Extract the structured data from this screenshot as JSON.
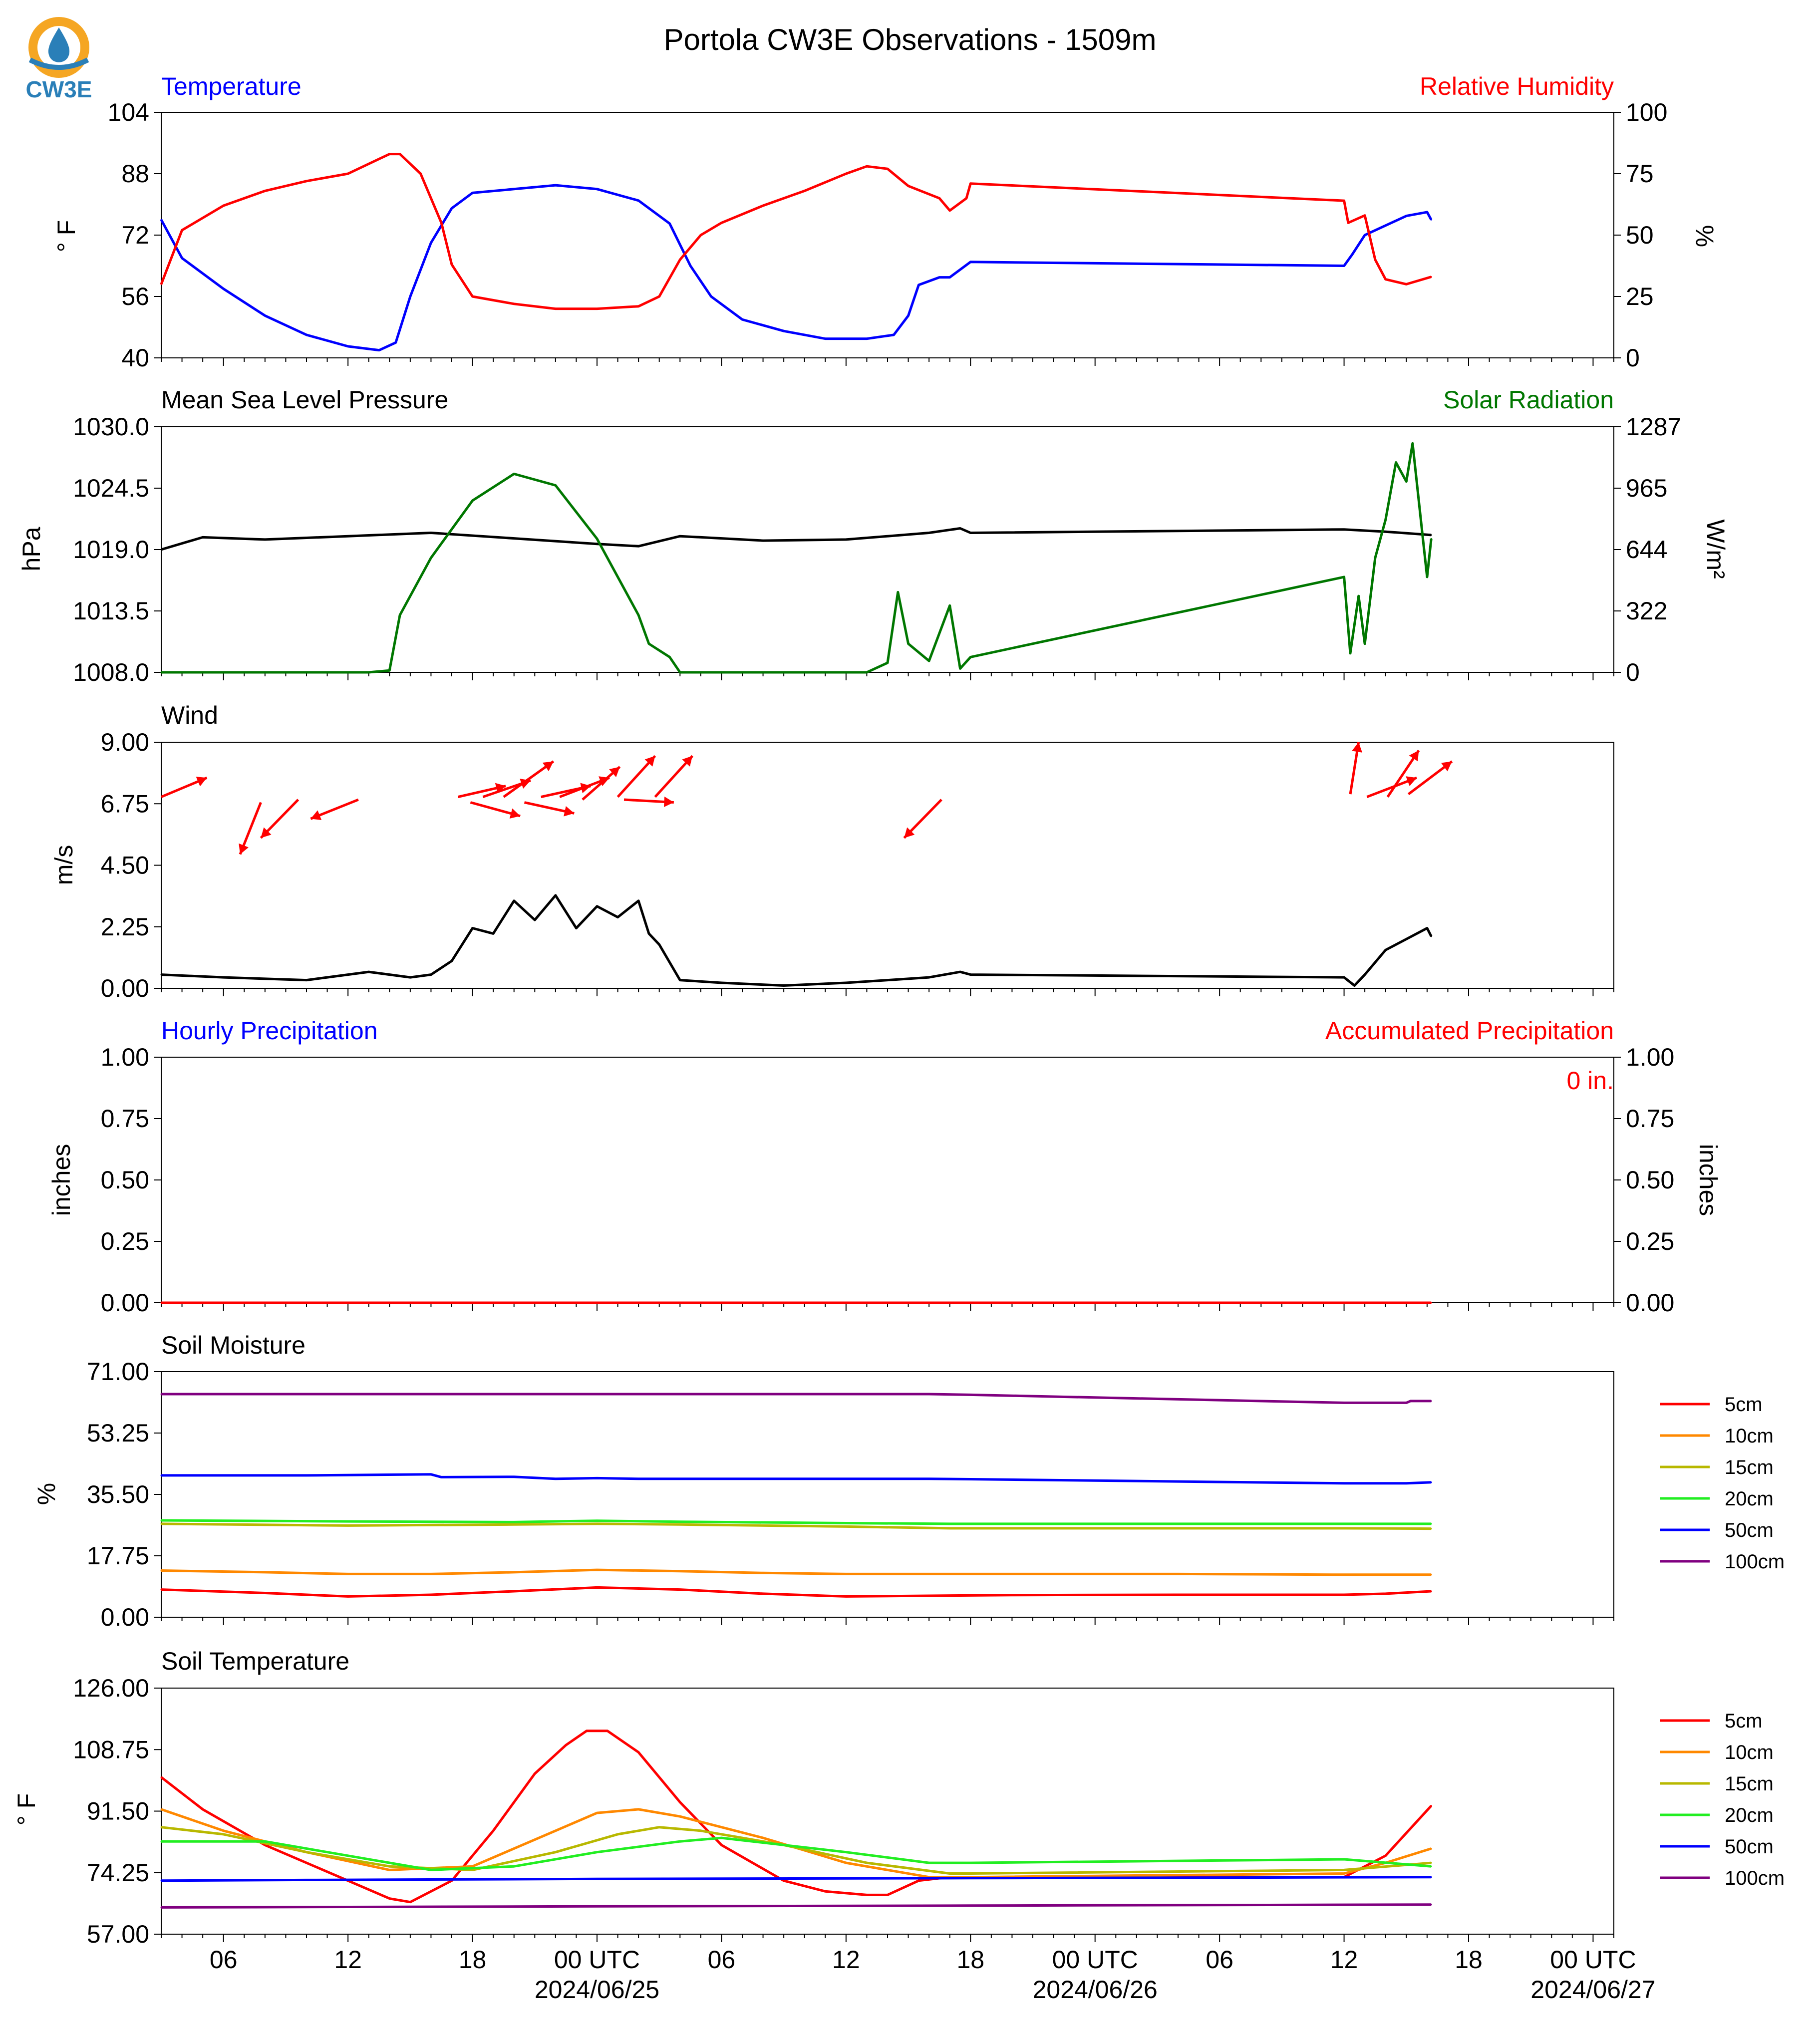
{
  "page": {
    "title": "Portola CW3E Observations - 1509m",
    "logo_text": "CW3E"
  },
  "colors": {
    "temperature": "#0000ff",
    "humidity": "#ff0000",
    "pressure": "#000000",
    "solar": "#007700",
    "wind": "#000000",
    "wind_barbs": "#ff0000",
    "logo_orange": "#f5a623",
    "logo_blue": "#2a7fb8",
    "depth_colors": [
      "#ff0000",
      "#ff8800",
      "#b8b800",
      "#22ee22",
      "#0000ff",
      "#800080"
    ]
  },
  "time_axis": {
    "ticks": [
      {
        "hour": 6,
        "label": "06",
        "sub": ""
      },
      {
        "hour": 12,
        "label": "12",
        "sub": ""
      },
      {
        "hour": 18,
        "label": "18",
        "sub": ""
      },
      {
        "hour": 24,
        "label": "00 UTC",
        "sub": "2024/06/25"
      },
      {
        "hour": 30,
        "label": "06",
        "sub": ""
      },
      {
        "hour": 36,
        "label": "12",
        "sub": ""
      },
      {
        "hour": 42,
        "label": "18",
        "sub": ""
      },
      {
        "hour": 48,
        "label": "00 UTC",
        "sub": "2024/06/26"
      },
      {
        "hour": 54,
        "label": "06",
        "sub": ""
      },
      {
        "hour": 60,
        "label": "12",
        "sub": ""
      },
      {
        "hour": 66,
        "label": "18",
        "sub": ""
      },
      {
        "hour": 72,
        "label": "00 UTC",
        "sub": "2024/06/27"
      }
    ]
  },
  "chart_data": [
    {
      "type": "line",
      "panel": "temperature_humidity",
      "title_left": "Temperature",
      "title_right": "Relative Humidity",
      "ylabel_left": "° F",
      "ylabel_right": "%",
      "ylim_left": [
        40,
        104
      ],
      "ylim_right": [
        0,
        100
      ],
      "yticks_left": [
        "40",
        "56",
        "72",
        "88",
        "104"
      ],
      "yticks_right": [
        "0",
        "25",
        "50",
        "75",
        "100"
      ],
      "series": [
        {
          "axis": "left",
          "color_key": "temperature",
          "x": [
            3.0,
            4.0,
            6.0,
            8.0,
            10.0,
            12.0,
            13.5,
            14.3,
            15.0,
            16.0,
            17.0,
            18.0,
            20.0,
            22.0,
            24.0,
            26.0,
            27.5,
            28.5,
            29.5,
            31.0,
            33.0,
            35.0,
            37.0,
            38.3,
            39.0,
            39.5,
            40.5,
            41.0,
            42.0,
            60.0,
            60.4,
            61.0,
            63.0,
            64.0,
            64.2
          ],
          "values": [
            76,
            66,
            58,
            51,
            46,
            43,
            42,
            44,
            56,
            70,
            79,
            83,
            84,
            85,
            84,
            81,
            75,
            64,
            56,
            50,
            47,
            45,
            45,
            46,
            51,
            59,
            61,
            61,
            65,
            64,
            67,
            72,
            77,
            78,
            76
          ]
        },
        {
          "axis": "right",
          "color_key": "humidity",
          "x": [
            3.0,
            4.0,
            6.0,
            8.0,
            10.0,
            12.0,
            14.0,
            14.5,
            15.5,
            16.5,
            17.0,
            18.0,
            20.0,
            22.0,
            24.0,
            26.0,
            27.0,
            28.0,
            29.0,
            30.0,
            32.0,
            34.0,
            36.0,
            37.0,
            38.0,
            39.0,
            40.5,
            41.0,
            41.8,
            42.0,
            60.0,
            60.2,
            61.0,
            61.5,
            62.0,
            63.0,
            64.2
          ],
          "values": [
            30,
            52,
            62,
            68,
            72,
            75,
            83,
            83,
            75,
            55,
            38,
            25,
            22,
            20,
            20,
            21,
            25,
            40,
            50,
            55,
            62,
            68,
            75,
            78,
            77,
            70,
            65,
            60,
            65,
            71,
            64,
            55,
            58,
            40,
            32,
            30,
            33
          ]
        }
      ]
    },
    {
      "type": "line",
      "panel": "pressure_solar",
      "title_left": "Mean Sea Level Pressure",
      "title_right": "Solar Radiation",
      "ylabel_left": "hPa",
      "ylabel_right": "W/m²",
      "ylim_left": [
        1008.0,
        1030.0
      ],
      "ylim_right": [
        0,
        1287
      ],
      "yticks_left": [
        "1008.0",
        "1013.5",
        "1019.0",
        "1024.5",
        "1030.0"
      ],
      "yticks_right": [
        "0",
        "322",
        "644",
        "965",
        "1287"
      ],
      "series": [
        {
          "axis": "left",
          "color_key": "pressure",
          "x": [
            3.0,
            5.0,
            8.0,
            12.0,
            16.0,
            20.0,
            24.0,
            26.0,
            28.0,
            32.0,
            36.0,
            40.0,
            41.5,
            42.0,
            60.0,
            62.0,
            64.2
          ],
          "values": [
            1019.0,
            1020.1,
            1019.9,
            1020.2,
            1020.5,
            1020.0,
            1019.5,
            1019.3,
            1020.2,
            1019.8,
            1019.9,
            1020.5,
            1020.9,
            1020.5,
            1020.8,
            1020.6,
            1020.3
          ]
        },
        {
          "axis": "left_solar",
          "color_key": "solar",
          "x": [
            3.0,
            13.0,
            14.0,
            14.5,
            16.0,
            18.0,
            20.0,
            22.0,
            24.0,
            26.0,
            26.5,
            27.5,
            28.0,
            29.0,
            37.0,
            38.0,
            38.5,
            39.0,
            40.0,
            41.0,
            41.5,
            42.0,
            60.0,
            60.3,
            60.7,
            61.0,
            61.5,
            62.0,
            62.5,
            63.0,
            63.3,
            63.8,
            64.0,
            64.2
          ],
          "values": [
            0,
            0,
            10,
            300,
            600,
            900,
            1040,
            980,
            700,
            300,
            150,
            80,
            0,
            0,
            0,
            50,
            420,
            150,
            60,
            350,
            20,
            80,
            500,
            100,
            400,
            150,
            600,
            800,
            1100,
            1000,
            1200,
            700,
            500,
            700
          ]
        }
      ]
    },
    {
      "type": "line",
      "panel": "wind",
      "title_left": "Wind",
      "ylabel_left": "m/s",
      "ylim_left": [
        0.0,
        9.0
      ],
      "yticks_left": [
        "0.00",
        "2.25",
        "4.50",
        "6.75",
        "9.00"
      ],
      "series": [
        {
          "axis": "left",
          "color_key": "wind",
          "x": [
            3.0,
            6.0,
            10.0,
            13.0,
            15.0,
            16.0,
            17.0,
            18.0,
            19.0,
            20.0,
            21.0,
            22.0,
            23.0,
            24.0,
            25.0,
            26.0,
            26.5,
            27.0,
            28.0,
            30.0,
            33.0,
            36.0,
            38.0,
            40.0,
            41.5,
            42.0,
            60.0,
            60.5,
            61.0,
            62.0,
            63.0,
            64.0,
            64.2
          ],
          "values": [
            0.5,
            0.4,
            0.3,
            0.6,
            0.4,
            0.5,
            1.0,
            2.2,
            2.0,
            3.2,
            2.5,
            3.4,
            2.2,
            3.0,
            2.6,
            3.2,
            2.0,
            1.6,
            0.3,
            0.2,
            0.1,
            0.2,
            0.3,
            0.4,
            0.6,
            0.5,
            0.4,
            0.1,
            0.5,
            1.4,
            1.8,
            2.2,
            1.9
          ]
        }
      ],
      "barbs": [
        {
          "x": 3.0,
          "y": 7.0,
          "dx": 2.2,
          "dy": 0.7
        },
        {
          "x": 7.8,
          "y": 6.8,
          "dx": -1.0,
          "dy": -1.9
        },
        {
          "x": 9.6,
          "y": 6.9,
          "dx": -1.8,
          "dy": -1.4
        },
        {
          "x": 12.5,
          "y": 6.9,
          "dx": -2.3,
          "dy": -0.7
        },
        {
          "x": 17.3,
          "y": 7.0,
          "dx": 2.3,
          "dy": 0.4
        },
        {
          "x": 18.5,
          "y": 7.0,
          "dx": 2.3,
          "dy": 0.6
        },
        {
          "x": 19.5,
          "y": 7.0,
          "dx": 2.4,
          "dy": 1.3
        },
        {
          "x": 17.9,
          "y": 6.8,
          "dx": 2.4,
          "dy": -0.5
        },
        {
          "x": 20.5,
          "y": 6.8,
          "dx": 2.4,
          "dy": -0.4
        },
        {
          "x": 21.3,
          "y": 7.0,
          "dx": 2.4,
          "dy": 0.4
        },
        {
          "x": 22.2,
          "y": 7.0,
          "dx": 2.4,
          "dy": 0.7
        },
        {
          "x": 23.3,
          "y": 6.9,
          "dx": 1.8,
          "dy": 1.2
        },
        {
          "x": 25.0,
          "y": 7.0,
          "dx": 1.8,
          "dy": 1.5
        },
        {
          "x": 26.8,
          "y": 7.0,
          "dx": 1.8,
          "dy": 1.5
        },
        {
          "x": 25.3,
          "y": 6.9,
          "dx": 2.4,
          "dy": -0.1
        },
        {
          "x": 40.6,
          "y": 6.9,
          "dx": -1.8,
          "dy": -1.4
        },
        {
          "x": 60.3,
          "y": 7.1,
          "dx": 0.4,
          "dy": 1.9
        },
        {
          "x": 61.1,
          "y": 7.0,
          "dx": 2.4,
          "dy": 0.7
        },
        {
          "x": 62.1,
          "y": 7.0,
          "dx": 1.5,
          "dy": 1.7
        },
        {
          "x": 63.1,
          "y": 7.1,
          "dx": 2.1,
          "dy": 1.2
        }
      ]
    },
    {
      "type": "line",
      "panel": "precipitation",
      "title_left": "Hourly Precipitation",
      "title_right": "Accumulated Precipitation",
      "annotation": "0 in.",
      "ylabel_left": "inches",
      "ylabel_right": "inches",
      "ylim_left": [
        0.0,
        1.0
      ],
      "ylim_right": [
        0.0,
        1.0
      ],
      "yticks_left": [
        "0.00",
        "0.25",
        "0.50",
        "0.75",
        "1.00"
      ],
      "yticks_right": [
        "0.00",
        "0.25",
        "0.50",
        "0.75",
        "1.00"
      ],
      "series": [
        {
          "axis": "left",
          "color_key": "humidity",
          "x": [
            3.0,
            64.2
          ],
          "values": [
            0.0,
            0.0
          ]
        }
      ]
    },
    {
      "type": "line",
      "panel": "soil_moisture",
      "title_left": "Soil Moisture",
      "ylabel_left": "%",
      "ylim_left": [
        0.0,
        71.0
      ],
      "yticks_left": [
        "0.00",
        "17.75",
        "35.50",
        "53.25",
        "71.00"
      ],
      "legend": [
        "5cm",
        "10cm",
        "15cm",
        "20cm",
        "50cm",
        "100cm"
      ],
      "series": [
        {
          "name": "5cm",
          "x": [
            3,
            8,
            12,
            16,
            20,
            24,
            28,
            32,
            36,
            40,
            44,
            52,
            60,
            62,
            64.2
          ],
          "values": [
            8.0,
            7.0,
            6.0,
            6.5,
            7.5,
            8.6,
            8.0,
            6.8,
            6.0,
            6.2,
            6.4,
            6.5,
            6.5,
            6.8,
            7.5
          ]
        },
        {
          "name": "10cm",
          "x": [
            3,
            8,
            12,
            16,
            20,
            24,
            28,
            32,
            36,
            40,
            44,
            52,
            60,
            64.2
          ],
          "values": [
            13.5,
            13.0,
            12.5,
            12.5,
            13.0,
            13.7,
            13.3,
            12.8,
            12.5,
            12.5,
            12.5,
            12.5,
            12.3,
            12.3
          ]
        },
        {
          "name": "15cm",
          "x": [
            3,
            12,
            20,
            24,
            28,
            36,
            41,
            52,
            60,
            64.2
          ],
          "values": [
            27.0,
            26.5,
            26.8,
            27.0,
            26.8,
            26.2,
            25.7,
            25.7,
            25.7,
            25.6
          ]
        },
        {
          "name": "20cm",
          "x": [
            3,
            12,
            20,
            24,
            28,
            36,
            41,
            52,
            60,
            64.2
          ],
          "values": [
            28.0,
            27.7,
            27.5,
            27.9,
            27.6,
            27.2,
            27.0,
            27.0,
            27.0,
            27.0
          ]
        },
        {
          "name": "50cm",
          "x": [
            3,
            10,
            16,
            16.5,
            20,
            22,
            24,
            26,
            40,
            42,
            60,
            63,
            64.2
          ],
          "values": [
            41.0,
            41.0,
            41.3,
            40.5,
            40.6,
            40.0,
            40.2,
            40.0,
            40.0,
            39.9,
            38.7,
            38.7,
            39.0
          ]
        },
        {
          "name": "100cm",
          "x": [
            3,
            24,
            40,
            42,
            52,
            60,
            63,
            63.2,
            64.2
          ],
          "values": [
            64.5,
            64.5,
            64.5,
            64.3,
            63.0,
            62.0,
            62.0,
            62.5,
            62.5
          ]
        }
      ]
    },
    {
      "type": "line",
      "panel": "soil_temperature",
      "title_left": "Soil Temperature",
      "ylabel_left": "° F",
      "ylim_left": [
        57.0,
        126.0
      ],
      "yticks_left": [
        "57.00",
        "74.25",
        "91.50",
        "108.75",
        "126.00"
      ],
      "legend": [
        "5cm",
        "10cm",
        "15cm",
        "20cm",
        "50cm",
        "100cm"
      ],
      "series": [
        {
          "name": "5cm",
          "x": [
            3,
            5,
            8,
            12,
            14,
            15,
            17,
            19,
            21,
            22.5,
            23.5,
            24.5,
            26,
            28,
            30,
            33,
            35,
            37,
            38,
            39.5,
            41,
            42,
            60,
            62,
            64.2
          ],
          "values": [
            101,
            92,
            82,
            72,
            67,
            66,
            72,
            86,
            102,
            110,
            114,
            114,
            108,
            94,
            82,
            72,
            69,
            68,
            68,
            72,
            73,
            73,
            73,
            79,
            93
          ]
        },
        {
          "name": "10cm",
          "x": [
            3,
            6,
            10,
            14,
            18,
            22,
            24,
            26,
            28,
            32,
            36,
            40,
            42,
            60,
            62,
            64.2
          ],
          "values": [
            92,
            86,
            80,
            75,
            76,
            86,
            91,
            92,
            90,
            84,
            77,
            73,
            73,
            74,
            77,
            81
          ]
        },
        {
          "name": "15cm",
          "x": [
            3,
            6,
            10,
            14,
            18,
            22,
            25,
            27,
            29,
            33,
            37,
            41,
            42,
            60,
            64.2
          ],
          "values": [
            87,
            85,
            80,
            76,
            75,
            80,
            85,
            87,
            86,
            82,
            77,
            74,
            74,
            75,
            77
          ]
        },
        {
          "name": "20cm",
          "x": [
            3,
            8,
            12,
            16,
            20,
            24,
            28,
            30,
            36,
            40,
            42,
            60,
            64.2
          ],
          "values": [
            83,
            83,
            79,
            75,
            76,
            80,
            83,
            84,
            80,
            77,
            77,
            78,
            76
          ]
        },
        {
          "name": "50cm",
          "x": [
            3,
            10,
            24,
            42,
            64.2
          ],
          "values": [
            72,
            72.2,
            72.5,
            72.7,
            73
          ]
        },
        {
          "name": "100cm",
          "x": [
            3,
            24,
            42,
            64.2
          ],
          "values": [
            64.5,
            64.8,
            65.0,
            65.3
          ]
        }
      ]
    }
  ]
}
